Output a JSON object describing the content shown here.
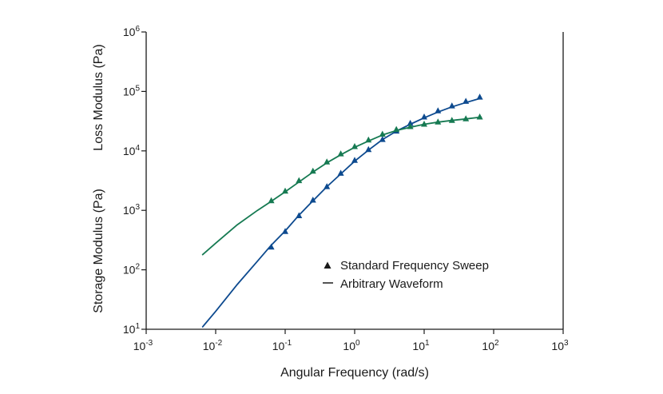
{
  "chart_data": {
    "type": "line",
    "xlabel": "Angular Frequency (rad/s)",
    "ylabel_storage": "Storage Modulus (Pa)",
    "ylabel_loss": "Loss Modulus (Pa)",
    "x_scale": "log",
    "y_scale": "log",
    "xlim": [
      0.001,
      1000
    ],
    "ylim": [
      10,
      1000000
    ],
    "x_ticks": [
      {
        "base": "10",
        "exp": "-3"
      },
      {
        "base": "10",
        "exp": "-2"
      },
      {
        "base": "10",
        "exp": "-1"
      },
      {
        "base": "10",
        "exp": "0"
      },
      {
        "base": "10",
        "exp": "1"
      },
      {
        "base": "10",
        "exp": "2"
      },
      {
        "base": "10",
        "exp": "3"
      }
    ],
    "y_ticks": [
      {
        "base": "10",
        "exp": "1"
      },
      {
        "base": "10",
        "exp": "2"
      },
      {
        "base": "10",
        "exp": "3"
      },
      {
        "base": "10",
        "exp": "4"
      },
      {
        "base": "10",
        "exp": "5"
      },
      {
        "base": "10",
        "exp": "6"
      }
    ],
    "grid": false,
    "legend_position": "center-right",
    "legend": [
      {
        "symbol": "triangle",
        "label": "Standard Frequency Sweep"
      },
      {
        "symbol": "line",
        "label": "Arbitrary Waveform"
      }
    ],
    "colors": {
      "storage": "#0d4a8f",
      "loss": "#167a52",
      "axis": "#1a1a1a"
    },
    "series": [
      {
        "key": "storage",
        "kind": "line",
        "x": [
          0.0065,
          0.01,
          0.02,
          0.04,
          0.0631,
          0.1,
          0.158,
          0.251,
          0.398,
          0.631,
          1.0,
          1.58,
          2.51,
          3.98,
          6.31,
          10.0,
          15.8,
          25.1,
          39.8,
          63.1,
          66
        ],
        "y": [
          11,
          20,
          55,
          140,
          260,
          450,
          830,
          1450,
          2500,
          4100,
          6700,
          10300,
          15500,
          21500,
          28000,
          36000,
          45000,
          55000,
          65000,
          76000,
          78000
        ]
      },
      {
        "key": "storage",
        "kind": "markers",
        "x": [
          0.0631,
          0.1,
          0.158,
          0.251,
          0.398,
          0.631,
          1.0,
          1.58,
          2.51,
          3.98,
          6.31,
          10.0,
          15.8,
          25.1,
          39.8,
          63.1
        ],
        "y": [
          240,
          440,
          810,
          1480,
          2500,
          4200,
          6900,
          10500,
          15500,
          21500,
          29000,
          37000,
          47000,
          57000,
          68000,
          80000
        ]
      },
      {
        "key": "loss",
        "kind": "line",
        "x": [
          0.0065,
          0.01,
          0.02,
          0.04,
          0.0631,
          0.1,
          0.158,
          0.251,
          0.398,
          0.631,
          1.0,
          1.58,
          2.51,
          3.98,
          6.31,
          10.0,
          15.8,
          25.1,
          39.8,
          66
        ],
        "y": [
          180,
          280,
          560,
          1000,
          1420,
          2050,
          3000,
          4400,
          6300,
          8600,
          11500,
          14700,
          18500,
          22000,
          25000,
          28000,
          30500,
          32500,
          34500,
          37000
        ]
      },
      {
        "key": "loss",
        "kind": "markers",
        "x": [
          0.0631,
          0.1,
          0.158,
          0.251,
          0.398,
          0.631,
          1.0,
          1.58,
          2.51,
          3.98,
          6.31,
          10.0,
          15.8,
          25.1,
          39.8,
          63.1
        ],
        "y": [
          1450,
          2100,
          3150,
          4550,
          6500,
          8900,
          11800,
          15200,
          19000,
          22800,
          25500,
          28000,
          30500,
          32500,
          34500,
          37000
        ]
      }
    ]
  }
}
